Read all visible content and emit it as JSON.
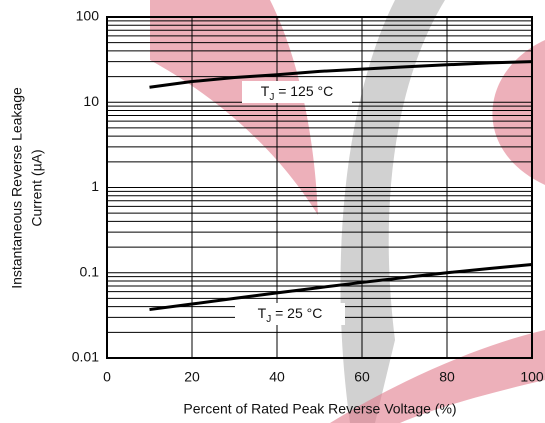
{
  "chart_data": {
    "type": "line",
    "xlabel": "Percent of Rated Peak Reverse Voltage (%)",
    "ylabel": [
      "Instantaneous Reverse Leakage",
      "Current (µA)"
    ],
    "xlim": [
      0,
      100
    ],
    "xticks": [
      0,
      20,
      40,
      60,
      80,
      100
    ],
    "ylim": [
      0.01,
      100
    ],
    "yticks": [
      0.01,
      0.1,
      1,
      10,
      100
    ],
    "log_y": true,
    "grid": true,
    "minor_grid": true,
    "series": [
      {
        "name": "T_J = 125 °C",
        "color": "#000000",
        "x": [
          10,
          20,
          30,
          40,
          50,
          60,
          70,
          80,
          90,
          100
        ],
        "values": [
          15,
          17.5,
          19.5,
          21,
          23,
          24.5,
          26,
          27.5,
          29,
          30
        ]
      },
      {
        "name": "T_J = 25 °C",
        "color": "#000000",
        "x": [
          10,
          20,
          30,
          40,
          50,
          60,
          70,
          80,
          90,
          100
        ],
        "values": [
          0.037,
          0.043,
          0.05,
          0.058,
          0.067,
          0.077,
          0.088,
          0.1,
          0.112,
          0.125
        ]
      }
    ],
    "annotations": [
      {
        "main": "T",
        "sub": "J",
        "rest": " = 125 °C"
      },
      {
        "main": "T",
        "sub": "J",
        "rest": " = 25 °C"
      }
    ]
  }
}
